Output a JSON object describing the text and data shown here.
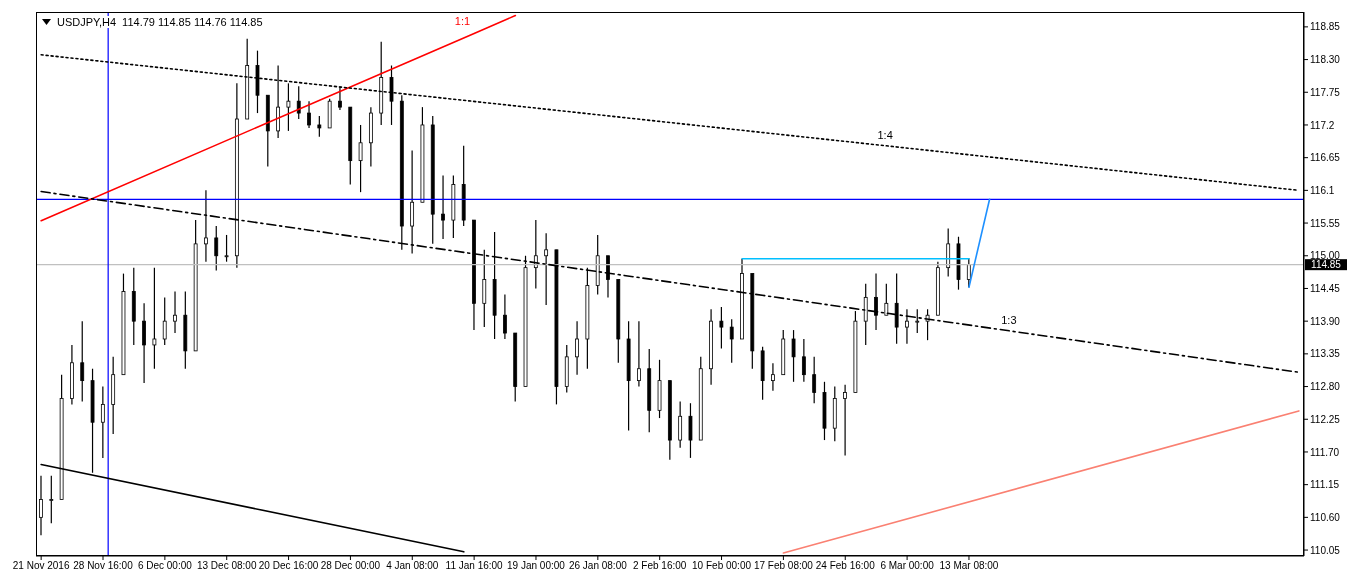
{
  "chart_data": {
    "type": "candlestick",
    "title": "USDJPY,H4",
    "subtitle": "114.79 114.85 114.76 114.85",
    "color": "#000000",
    "categories": [
      "21 Nov 2016",
      null,
      null,
      null,
      null,
      null,
      "28 Nov 16:00",
      null,
      null,
      null,
      null,
      null,
      "6 Dec 00:00",
      null,
      null,
      null,
      null,
      null,
      "13 Dec 08:00",
      null,
      null,
      null,
      null,
      null,
      "20 Dec 16:00",
      null,
      null,
      null,
      null,
      null,
      "28 Dec 00:00",
      null,
      null,
      null,
      null,
      null,
      "4 Jan 08:00",
      null,
      null,
      null,
      null,
      null,
      "11 Jan 16:00",
      null,
      null,
      null,
      null,
      null,
      "19 Jan 00:00",
      null,
      null,
      null,
      null,
      null,
      "26 Jan 08:00",
      null,
      null,
      null,
      null,
      null,
      "2 Feb 16:00",
      null,
      null,
      null,
      null,
      null,
      "10 Feb 00:00",
      null,
      null,
      null,
      null,
      null,
      "17 Feb 08:00",
      null,
      null,
      null,
      null,
      null,
      "24 Feb 16:00",
      null,
      null,
      null,
      null,
      null,
      "6 Mar 00:00",
      null,
      null,
      null,
      null,
      null,
      "13 Mar 08:00",
      null,
      null,
      null,
      null,
      null,
      null,
      null,
      null,
      null,
      null,
      null,
      null,
      null,
      null,
      null,
      null,
      null,
      null,
      null,
      null,
      null,
      null,
      null,
      null,
      null,
      null,
      null,
      null,
      null,
      null,
      null,
      null
    ],
    "ohlc": [
      [
        110.6,
        111.3,
        110.3,
        110.9
      ],
      [
        110.9,
        111.3,
        110.5,
        110.9
      ],
      [
        110.9,
        113.0,
        110.9,
        112.6
      ],
      [
        112.6,
        113.5,
        112.5,
        113.2
      ],
      [
        113.2,
        113.9,
        112.55,
        112.9
      ],
      [
        112.9,
        113.1,
        111.35,
        112.2
      ],
      [
        112.2,
        112.8,
        111.6,
        112.5
      ],
      [
        112.5,
        113.3,
        112.0,
        113.0
      ],
      [
        113.0,
        114.7,
        113.0,
        114.4
      ],
      [
        114.4,
        114.8,
        113.5,
        113.9
      ],
      [
        113.9,
        114.2,
        112.86,
        113.5
      ],
      [
        113.5,
        114.8,
        113.1,
        113.6
      ],
      [
        113.6,
        114.3,
        113.5,
        113.9
      ],
      [
        113.9,
        114.4,
        113.7,
        114.0
      ],
      [
        114.0,
        114.4,
        113.1,
        113.4
      ],
      [
        113.4,
        115.6,
        113.4,
        115.2
      ],
      [
        115.2,
        116.1,
        114.9,
        115.3
      ],
      [
        115.3,
        115.5,
        114.75,
        115.0
      ],
      [
        115.0,
        115.35,
        114.9,
        115.0
      ],
      [
        115.0,
        117.9,
        114.8,
        117.3
      ],
      [
        117.3,
        118.65,
        117.3,
        118.2
      ],
      [
        118.2,
        118.45,
        117.4,
        117.7
      ],
      [
        117.7,
        117.7,
        116.5,
        117.1
      ],
      [
        117.1,
        118.2,
        116.98,
        117.5
      ],
      [
        117.5,
        117.9,
        117.1,
        117.6
      ],
      [
        117.6,
        117.85,
        117.3,
        117.4
      ],
      [
        117.4,
        117.6,
        117.15,
        117.2
      ],
      [
        117.2,
        117.35,
        117.0,
        117.15
      ],
      [
        117.15,
        117.64,
        117.15,
        117.6
      ],
      [
        117.6,
        117.85,
        117.45,
        117.5
      ],
      [
        117.5,
        117.5,
        116.2,
        116.6
      ],
      [
        116.6,
        117.2,
        116.07,
        116.9
      ],
      [
        116.9,
        117.5,
        116.5,
        117.4
      ],
      [
        117.4,
        118.6,
        117.2,
        118.0
      ],
      [
        118.0,
        118.2,
        117.2,
        117.6
      ],
      [
        117.6,
        117.7,
        115.1,
        115.5
      ],
      [
        115.5,
        116.77,
        115.04,
        115.9
      ],
      [
        115.9,
        117.5,
        115.9,
        117.2
      ],
      [
        117.2,
        117.35,
        115.2,
        115.7
      ],
      [
        115.7,
        116.35,
        115.28,
        115.6
      ],
      [
        115.6,
        116.35,
        115.3,
        116.2
      ],
      [
        116.2,
        116.85,
        115.5,
        115.6
      ],
      [
        115.6,
        115.6,
        113.75,
        114.2
      ],
      [
        114.2,
        115.1,
        113.8,
        114.6
      ],
      [
        114.6,
        115.4,
        113.6,
        114.0
      ],
      [
        114.0,
        114.35,
        113.6,
        113.7
      ],
      [
        113.7,
        113.7,
        112.55,
        112.8
      ],
      [
        112.8,
        115.0,
        112.8,
        114.8
      ],
      [
        114.8,
        115.6,
        114.45,
        115.0
      ],
      [
        115.0,
        115.38,
        114.17,
        115.1
      ],
      [
        115.1,
        115.1,
        112.5,
        112.8
      ],
      [
        112.8,
        113.5,
        112.7,
        113.3
      ],
      [
        113.3,
        113.9,
        113.0,
        113.6
      ],
      [
        113.6,
        114.8,
        113.1,
        114.5
      ],
      [
        114.5,
        115.35,
        114.35,
        115.0
      ],
      [
        115.0,
        115.0,
        114.3,
        114.6
      ],
      [
        114.6,
        114.6,
        113.2,
        113.6
      ],
      [
        113.6,
        113.9,
        112.06,
        112.9
      ],
      [
        112.9,
        113.9,
        112.8,
        113.1
      ],
      [
        113.1,
        113.43,
        112.03,
        112.4
      ],
      [
        112.4,
        113.25,
        112.27,
        112.9
      ],
      [
        112.9,
        112.9,
        111.57,
        111.9
      ],
      [
        111.9,
        112.55,
        111.77,
        112.3
      ],
      [
        112.3,
        112.52,
        111.6,
        111.9
      ],
      [
        111.9,
        113.3,
        111.9,
        113.1
      ],
      [
        113.1,
        114.1,
        112.83,
        113.9
      ],
      [
        113.9,
        114.14,
        113.44,
        113.8
      ],
      [
        113.8,
        113.93,
        113.2,
        113.6
      ],
      [
        113.6,
        114.95,
        113.6,
        114.7
      ],
      [
        114.7,
        114.7,
        113.1,
        113.4
      ],
      [
        113.4,
        113.47,
        112.58,
        112.9
      ],
      [
        112.9,
        113.19,
        112.73,
        113.0
      ],
      [
        113.0,
        113.75,
        113.0,
        113.6
      ],
      [
        113.6,
        113.75,
        112.88,
        113.3
      ],
      [
        113.3,
        113.6,
        112.88,
        113.0
      ],
      [
        113.0,
        113.3,
        112.52,
        112.7
      ],
      [
        112.7,
        112.88,
        111.9,
        112.1
      ],
      [
        112.1,
        112.8,
        111.88,
        112.6
      ],
      [
        112.6,
        112.83,
        111.64,
        112.7
      ],
      [
        112.7,
        114.07,
        112.7,
        113.9
      ],
      [
        113.9,
        114.53,
        113.5,
        114.3
      ],
      [
        114.3,
        114.7,
        113.75,
        114.0
      ],
      [
        114.0,
        114.53,
        114.0,
        114.2
      ],
      [
        114.2,
        114.7,
        113.52,
        113.8
      ],
      [
        113.8,
        114.1,
        113.52,
        113.9
      ],
      [
        113.9,
        114.1,
        113.7,
        113.9
      ],
      [
        113.9,
        114.1,
        113.58,
        114.0
      ],
      [
        114.0,
        114.9,
        114.0,
        114.8
      ],
      [
        114.8,
        115.46,
        114.65,
        115.2
      ],
      [
        115.2,
        115.32,
        114.43,
        114.6
      ],
      [
        114.6,
        114.96,
        114.47,
        114.85
      ],
      null,
      null,
      null,
      null,
      null,
      null,
      null,
      null,
      null,
      null,
      null,
      null,
      null,
      null,
      null,
      null,
      null,
      null,
      null,
      null,
      null,
      null,
      null,
      null,
      null,
      null,
      null,
      null,
      null,
      null,
      null,
      null
    ],
    "series": [
      {
        "type": "line",
        "name": "1:1",
        "color": "#ff0000",
        "line_style": "solid",
        "values": [
          115.59,
          null,
          null,
          null,
          null,
          null,
          null,
          null,
          null,
          null,
          null,
          null,
          null,
          null,
          null,
          null,
          null,
          null,
          null,
          null,
          null,
          null,
          null,
          null,
          null,
          null,
          null,
          null,
          null,
          null,
          null,
          null,
          null,
          null,
          null,
          null,
          null,
          null,
          null,
          null,
          null,
          null,
          118.74,
          null,
          null,
          null,
          119.04,
          null,
          null,
          null,
          null,
          null,
          null,
          null,
          null,
          null,
          null,
          null,
          null,
          null,
          null,
          null,
          null,
          null,
          null,
          null,
          null,
          null,
          null,
          null,
          null,
          null,
          null,
          null,
          null,
          null,
          null,
          null,
          null,
          null,
          null,
          null,
          null,
          null,
          null,
          null,
          null,
          null,
          null,
          null,
          null,
          null,
          null,
          null,
          null,
          null,
          null,
          null,
          null,
          null,
          null,
          null,
          null,
          null,
          null,
          null,
          null,
          null,
          null,
          null,
          null,
          null,
          null,
          null,
          null,
          null,
          null,
          null,
          null,
          null,
          null,
          null,
          null
        ]
      },
      {
        "type": "line",
        "name": "1:4",
        "color": "#000000",
        "line_style": "dotted",
        "values": [
          118.38,
          null,
          null,
          null,
          null,
          null,
          null,
          null,
          null,
          null,
          null,
          null,
          null,
          null,
          null,
          null,
          null,
          null,
          null,
          null,
          null,
          null,
          null,
          null,
          null,
          null,
          null,
          null,
          null,
          null,
          null,
          null,
          null,
          null,
          null,
          null,
          null,
          null,
          null,
          null,
          null,
          null,
          null,
          null,
          null,
          null,
          null,
          null,
          null,
          null,
          null,
          null,
          null,
          null,
          null,
          null,
          null,
          null,
          null,
          null,
          null,
          null,
          null,
          null,
          null,
          null,
          null,
          null,
          null,
          null,
          null,
          null,
          null,
          null,
          null,
          null,
          null,
          null,
          null,
          null,
          null,
          null,
          null,
          116.83,
          null,
          null,
          null,
          null,
          null,
          null,
          null,
          null,
          null,
          null,
          null,
          null,
          null,
          null,
          null,
          null,
          null,
          null,
          null,
          null,
          null,
          null,
          null,
          null,
          null,
          null,
          null,
          null,
          null,
          null,
          null,
          null,
          null,
          null,
          null,
          null,
          null,
          null,
          116.1
        ]
      },
      {
        "type": "line",
        "name": "1:3",
        "color": "#000000",
        "line_style": "dashed",
        "values": [
          116.08,
          null,
          null,
          null,
          null,
          null,
          null,
          null,
          null,
          null,
          null,
          null,
          null,
          null,
          null,
          null,
          null,
          null,
          null,
          null,
          null,
          null,
          null,
          null,
          null,
          null,
          null,
          null,
          null,
          null,
          null,
          null,
          null,
          null,
          null,
          null,
          null,
          null,
          null,
          null,
          null,
          null,
          null,
          null,
          null,
          null,
          null,
          null,
          null,
          null,
          null,
          null,
          null,
          null,
          null,
          null,
          null,
          null,
          null,
          null,
          null,
          null,
          null,
          null,
          null,
          null,
          null,
          null,
          null,
          null,
          null,
          null,
          null,
          null,
          null,
          null,
          null,
          null,
          null,
          null,
          null,
          null,
          null,
          null,
          null,
          null,
          null,
          null,
          null,
          null,
          null,
          null,
          null,
          null,
          null,
          113.71,
          null,
          null,
          null,
          null,
          null,
          null,
          null,
          null,
          null,
          null,
          null,
          null,
          null,
          null,
          null,
          null,
          null,
          null,
          null,
          null,
          null,
          null,
          null,
          null,
          null,
          null,
          113.04
        ]
      },
      {
        "type": "line",
        "color": "#000000",
        "line_style": "solid",
        "values": [
          111.49,
          null,
          null,
          null,
          null,
          null,
          null,
          null,
          null,
          null,
          null,
          null,
          null,
          null,
          null,
          null,
          null,
          null,
          null,
          null,
          null,
          null,
          null,
          null,
          null,
          null,
          null,
          null,
          null,
          null,
          null,
          null,
          null,
          null,
          null,
          null,
          null,
          null,
          null,
          null,
          null,
          110.02,
          null,
          null,
          null,
          null,
          null,
          null,
          null,
          null,
          null,
          null,
          null,
          null,
          null,
          null,
          null,
          null,
          null,
          null,
          null,
          null,
          null,
          null,
          null,
          null,
          null,
          null,
          null,
          null,
          null,
          null,
          null,
          null,
          null,
          null,
          null,
          null,
          null,
          null,
          null,
          null,
          null,
          null,
          null,
          null,
          null,
          null,
          null,
          null,
          null,
          null,
          null,
          null,
          null,
          null,
          null,
          null,
          null,
          null,
          null,
          null,
          null,
          null,
          null,
          null,
          null,
          null,
          null,
          null,
          null,
          null,
          null,
          null,
          null,
          null,
          null,
          null,
          null,
          null,
          null,
          null,
          null
        ]
      },
      {
        "type": "line",
        "color": "#fa8072",
        "line_style": "solid",
        "values": [
          null,
          null,
          null,
          null,
          null,
          null,
          null,
          null,
          null,
          null,
          null,
          null,
          null,
          null,
          null,
          null,
          null,
          null,
          null,
          null,
          null,
          null,
          null,
          null,
          null,
          null,
          null,
          null,
          null,
          null,
          null,
          null,
          null,
          null,
          null,
          null,
          null,
          null,
          null,
          null,
          null,
          null,
          null,
          null,
          null,
          null,
          null,
          null,
          null,
          null,
          null,
          null,
          null,
          null,
          null,
          null,
          null,
          null,
          null,
          null,
          null,
          null,
          null,
          null,
          null,
          null,
          null,
          null,
          null,
          null,
          null,
          null,
          110.0,
          null,
          null,
          null,
          null,
          null,
          null,
          null,
          null,
          null,
          null,
          null,
          null,
          null,
          null,
          null,
          null,
          null,
          null,
          null,
          null,
          null,
          null,
          null,
          null,
          null,
          null,
          null,
          null,
          null,
          null,
          null,
          null,
          null,
          null,
          null,
          null,
          null,
          null,
          null,
          null,
          null,
          null,
          null,
          null,
          null,
          null,
          null,
          null,
          null,
          112.39
        ]
      },
      {
        "type": "line",
        "color": "#00bfff",
        "line_style": "solid",
        "values": [
          null,
          null,
          null,
          null,
          null,
          null,
          null,
          null,
          null,
          null,
          null,
          null,
          null,
          null,
          null,
          null,
          null,
          null,
          null,
          null,
          null,
          null,
          null,
          null,
          null,
          null,
          null,
          null,
          null,
          null,
          null,
          null,
          null,
          null,
          null,
          null,
          null,
          null,
          null,
          null,
          null,
          null,
          null,
          null,
          null,
          null,
          null,
          null,
          null,
          null,
          null,
          null,
          null,
          null,
          null,
          null,
          null,
          null,
          null,
          null,
          null,
          null,
          null,
          null,
          null,
          null,
          null,
          null,
          114.95,
          null,
          null,
          null,
          null,
          null,
          null,
          null,
          null,
          null,
          null,
          null,
          null,
          null,
          null,
          null,
          null,
          null,
          null,
          null,
          null,
          null,
          114.95,
          null,
          null,
          null,
          null,
          null,
          null,
          null,
          null,
          null,
          null,
          null,
          null,
          null,
          null,
          null,
          null,
          null,
          null,
          null,
          null,
          null,
          null,
          null,
          null,
          null,
          null,
          null,
          null,
          null,
          null,
          null,
          null
        ]
      },
      {
        "type": "line",
        "color": "#1e90ff",
        "line_style": "solid",
        "values": [
          null,
          null,
          null,
          null,
          null,
          null,
          null,
          null,
          null,
          null,
          null,
          null,
          null,
          null,
          null,
          null,
          null,
          null,
          null,
          null,
          null,
          null,
          null,
          null,
          null,
          null,
          null,
          null,
          null,
          null,
          null,
          null,
          null,
          null,
          null,
          null,
          null,
          null,
          null,
          null,
          null,
          null,
          null,
          null,
          null,
          null,
          null,
          null,
          null,
          null,
          null,
          null,
          null,
          null,
          null,
          null,
          null,
          null,
          null,
          null,
          null,
          null,
          null,
          null,
          null,
          null,
          null,
          null,
          null,
          null,
          null,
          null,
          null,
          null,
          null,
          null,
          null,
          null,
          null,
          null,
          null,
          null,
          null,
          null,
          null,
          null,
          null,
          null,
          null,
          null,
          114.47,
          null,
          115.95,
          null,
          null,
          null,
          null,
          null,
          null,
          null,
          null,
          null,
          null,
          null,
          null,
          null,
          null,
          null,
          null,
          null,
          null,
          null,
          null,
          null,
          null,
          null,
          null,
          null,
          null,
          null,
          null,
          null,
          null
        ]
      }
    ],
    "ref_lines": [
      {
        "axis": "y",
        "value": 115.95,
        "color": "#0000ff"
      },
      {
        "axis": "y",
        "value": 114.85,
        "label": "114.85",
        "color": "#c0c0c0"
      },
      {
        "axis": "x",
        "value": "28 Nov 16:00",
        "color": "#0000ff"
      }
    ],
    "ylim": [
      109.95,
      119.1
    ],
    "yticks": [
      110.05,
      {
        "value": 110.6,
        "label": "110.60"
      },
      111.15,
      {
        "value": 111.7,
        "label": "111.70"
      },
      112.25,
      {
        "value": 112.8,
        "label": "112.80"
      },
      113.35,
      {
        "value": 113.9,
        "label": "113.90"
      },
      114.45,
      {
        "value": 115,
        "label": "115.00"
      },
      115.55,
      116.1,
      116.65,
      117.2,
      117.75,
      {
        "value": 118.3,
        "label": "118.30"
      },
      118.85
    ],
    "grid": false,
    "legend": false
  }
}
